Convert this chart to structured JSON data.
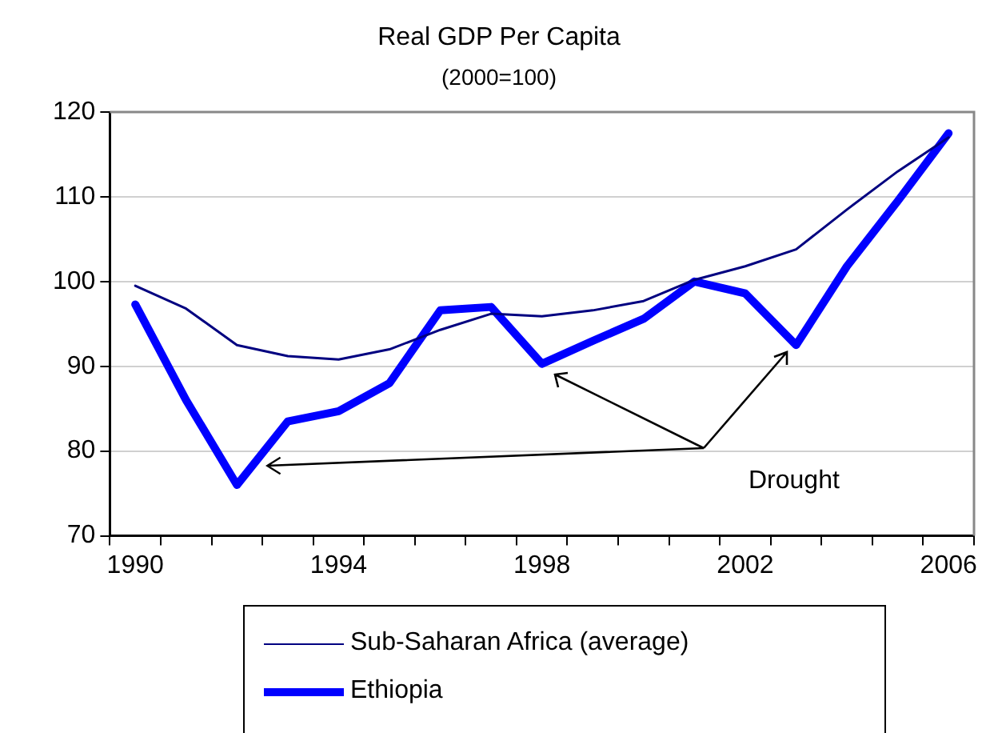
{
  "chart_data": {
    "type": "line",
    "title": "Real GDP Per Capita",
    "subtitle": "(2000=100)",
    "categories": [
      "1990",
      null,
      null,
      null,
      "1994",
      null,
      null,
      null,
      "1998",
      null,
      null,
      null,
      "2002",
      null,
      null,
      null,
      "2006"
    ],
    "series": [
      {
        "name": "Sub-Saharan Africa (average)",
        "color": "#000080",
        "values": [
          99.5,
          96.8,
          92.5,
          91.2,
          90.8,
          92,
          94.3,
          96.2,
          95.9,
          96.6,
          97.7,
          100.2,
          101.8,
          103.8,
          108.5,
          113,
          117
        ]
      },
      {
        "name": "Ethiopia",
        "color": "#0000ff",
        "values": [
          97.3,
          86,
          76,
          83.5,
          84.7,
          88,
          96.6,
          97,
          90.3,
          93,
          95.6,
          100,
          98.6,
          92.5,
          101.8,
          109.5,
          117.5
        ]
      }
    ],
    "ylim": [
      70,
      120
    ],
    "yticks": [
      70,
      80,
      90,
      100,
      110,
      120
    ],
    "grid": "y",
    "legend": "bottom",
    "marker": "none",
    "line_style": "solid",
    "annotations": [
      "Drought"
    ]
  }
}
